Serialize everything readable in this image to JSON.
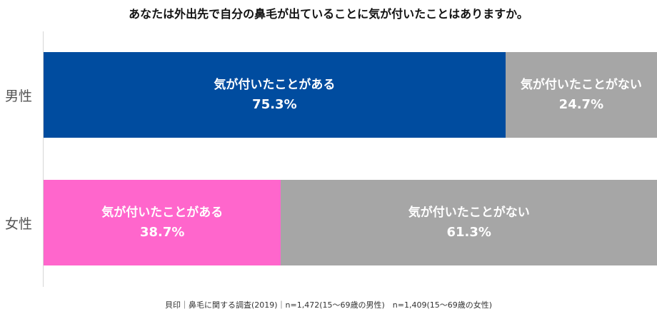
{
  "chart_data": {
    "type": "bar",
    "stacked": true,
    "orientation": "horizontal",
    "title": "あなたは外出先で自分の鼻毛が出ていることに気が付いたことはありますか。",
    "categories": [
      "男性",
      "女性"
    ],
    "series": [
      {
        "name": "気が付いたことがある",
        "values": [
          75.3,
          38.7
        ],
        "value_labels": [
          "75.3%",
          "38.7%"
        ],
        "colors": [
          "#004C9F",
          "#FF66CC"
        ]
      },
      {
        "name": "気が付いたことがない",
        "values": [
          24.7,
          61.3
        ],
        "value_labels": [
          "24.7%",
          "61.3%"
        ],
        "colors": [
          "#A6A6A6",
          "#A6A6A6"
        ]
      }
    ],
    "xlim": [
      0,
      100
    ],
    "grid": false,
    "legend": "none",
    "footer": "貝印｜鼻毛に関する調査(2019)｜n=1,472(15〜69歳の男性)　n=1,409(15〜69歳の女性)"
  }
}
